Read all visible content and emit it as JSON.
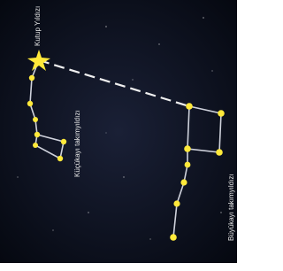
{
  "labels": {
    "polaris": "Kutup Yıldızı",
    "little_dipper": "Küçükayı takımyıldızı",
    "big_dipper": "Büyükayı takımyıldızı"
  }
}
